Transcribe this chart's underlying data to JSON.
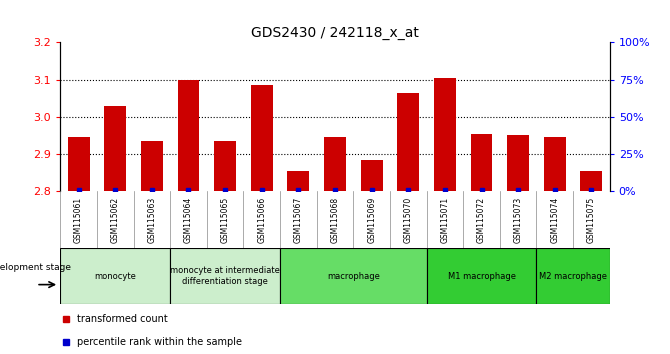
{
  "title": "GDS2430 / 242118_x_at",
  "samples": [
    "GSM115061",
    "GSM115062",
    "GSM115063",
    "GSM115064",
    "GSM115065",
    "GSM115066",
    "GSM115067",
    "GSM115068",
    "GSM115069",
    "GSM115070",
    "GSM115071",
    "GSM115072",
    "GSM115073",
    "GSM115074",
    "GSM115075"
  ],
  "bar_values": [
    2.945,
    3.03,
    2.935,
    3.1,
    2.935,
    3.085,
    2.855,
    2.945,
    2.885,
    3.065,
    3.105,
    2.955,
    2.95,
    2.945,
    2.855
  ],
  "ymin": 2.8,
  "ymax": 3.2,
  "bar_color": "#cc0000",
  "percentile_color": "#0000cc",
  "yticks_left": [
    2.8,
    2.9,
    3.0,
    3.1,
    3.2
  ],
  "yticks_right": [
    0,
    25,
    50,
    75,
    100
  ],
  "yticks_right_labels": [
    "0%",
    "25%",
    "50%",
    "75%",
    "100%"
  ],
  "stages": [
    {
      "label": "monocyte",
      "start": 0,
      "end": 2,
      "color": "#cceecc"
    },
    {
      "label": "monocyte at intermediate\ndifferentiation stage",
      "start": 3,
      "end": 5,
      "color": "#cceecc"
    },
    {
      "label": "macrophage",
      "start": 6,
      "end": 9,
      "color": "#66dd66"
    },
    {
      "label": "M1 macrophage",
      "start": 10,
      "end": 12,
      "color": "#33cc33"
    },
    {
      "label": "M2 macrophage",
      "start": 13,
      "end": 14,
      "color": "#33cc33"
    }
  ],
  "legend_items": [
    {
      "label": "transformed count",
      "color": "#cc0000"
    },
    {
      "label": "percentile rank within the sample",
      "color": "#0000cc"
    }
  ],
  "xtick_bg": "#c8c8c8",
  "stage_border_color": "#000000",
  "dev_stage_text": "development stage"
}
